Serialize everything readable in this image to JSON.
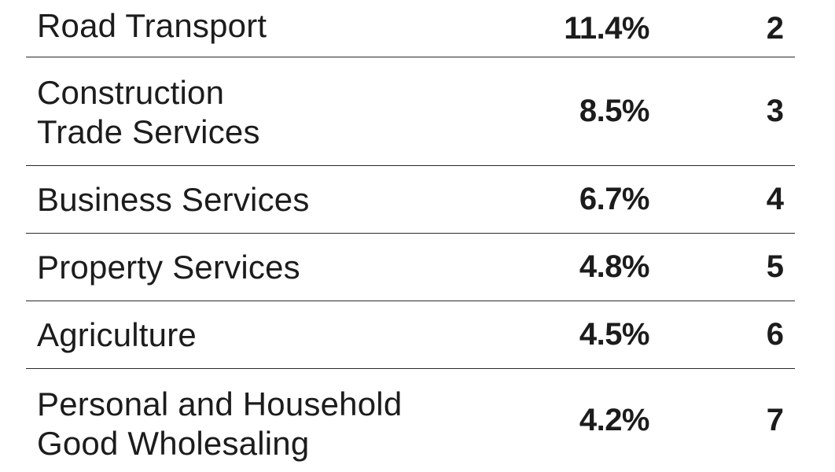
{
  "rows": [
    {
      "industry": "Road Transport",
      "percent": "11.4%",
      "rank": "2"
    },
    {
      "industry": "Construction\nTrade Services",
      "percent": "8.5%",
      "rank": "3"
    },
    {
      "industry": "Business Services",
      "percent": "6.7%",
      "rank": "4"
    },
    {
      "industry": "Property Services",
      "percent": "4.8%",
      "rank": "5"
    },
    {
      "industry": "Agriculture",
      "percent": "4.5%",
      "rank": "6"
    },
    {
      "industry": "Personal and Household\nGood Wholesaling",
      "percent": "4.2%",
      "rank": "7"
    }
  ]
}
